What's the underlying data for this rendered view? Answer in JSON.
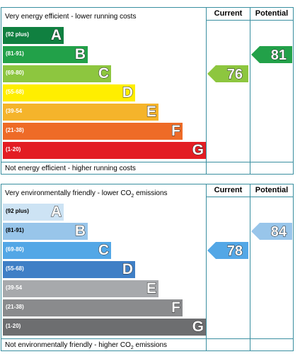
{
  "chart_data": [
    {
      "type": "table",
      "name": "energy-efficiency-rating",
      "header": {
        "current": "Current",
        "potential": "Potential"
      },
      "top_text": "Very energy efficient - lower running costs",
      "bottom_text": "Not energy efficient - higher running costs",
      "bands": [
        {
          "range": "(92 plus)",
          "letter": "A",
          "color": "#108040",
          "light_label": false
        },
        {
          "range": "(81-91)",
          "letter": "B",
          "color": "#22a149",
          "light_label": false
        },
        {
          "range": "(69-80)",
          "letter": "C",
          "color": "#8dc63f",
          "light_label": false
        },
        {
          "range": "(55-68)",
          "letter": "D",
          "color": "#ffee00",
          "light_label": false
        },
        {
          "range": "(39-54",
          "letter": "E",
          "color": "#f5b42b",
          "light_label": false
        },
        {
          "range": "(21-38)",
          "letter": "F",
          "color": "#ee6b27",
          "light_label": false
        },
        {
          "range": "(1-20)",
          "letter": "G",
          "color": "#e31d23",
          "light_label": false
        }
      ],
      "current": {
        "value": "76",
        "band": "C",
        "color": "#8dc63f"
      },
      "potential": {
        "value": "81",
        "band": "B",
        "color": "#22a149"
      }
    },
    {
      "type": "table",
      "name": "environmental-impact-rating",
      "header": {
        "current": "Current",
        "potential": "Potential"
      },
      "top_text_before": "Very environmentally friendly - lower CO",
      "top_text_sub": "2",
      "top_text_after": " emissions",
      "bottom_text_before": "Not environmentally friendly - higher CO",
      "bottom_text_sub": "2",
      "bottom_text_after": " emissions",
      "bands": [
        {
          "range": "(92 plus)",
          "letter": "A",
          "color": "#cde3f4",
          "light_label": true
        },
        {
          "range": "(81-91)",
          "letter": "B",
          "color": "#98c5ea",
          "light_label": true
        },
        {
          "range": "(69-80)",
          "letter": "C",
          "color": "#53a7e6",
          "light_label": false
        },
        {
          "range": "(55-68)",
          "letter": "D",
          "color": "#3f7fc6",
          "light_label": false
        },
        {
          "range": "(39-54",
          "letter": "E",
          "color": "#a7a9ac",
          "light_label": false
        },
        {
          "range": "(21-38)",
          "letter": "F",
          "color": "#8a8b8d",
          "light_label": false
        },
        {
          "range": "(1-20)",
          "letter": "G",
          "color": "#6d6e70",
          "light_label": false
        }
      ],
      "current": {
        "value": "78",
        "band": "C",
        "color": "#53a7e6"
      },
      "potential": {
        "value": "84",
        "band": "B",
        "color": "#98c5ea"
      }
    }
  ]
}
